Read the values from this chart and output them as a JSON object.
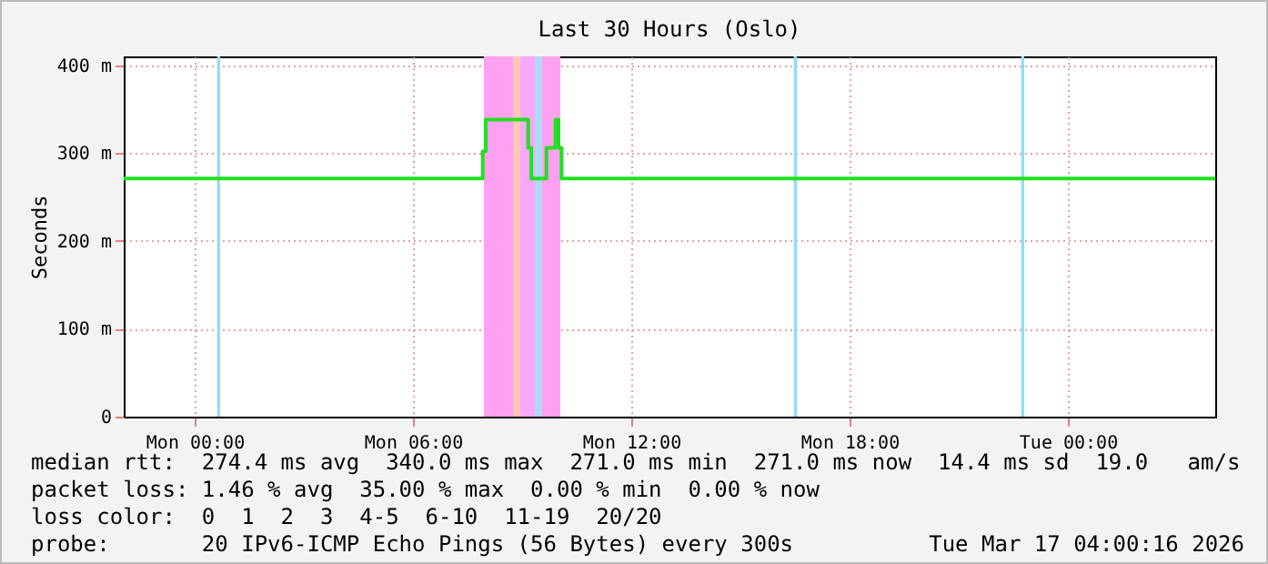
{
  "chart_data": {
    "type": "step",
    "title": "Last 30 Hours (Oslo)",
    "ylabel": "Seconds",
    "x": [
      "2026-03-15T22:03",
      "2026-03-16T07:50",
      "2026-03-16T07:55",
      "2026-03-16T08:00",
      "2026-03-16T09:05",
      "2026-03-16T09:10",
      "2026-03-16T09:15",
      "2026-03-16T09:35",
      "2026-03-16T09:40",
      "2026-03-16T09:50",
      "2026-03-16T09:55",
      "2026-03-16T10:00",
      "2026-03-16T10:05",
      "2026-03-17T04:03"
    ],
    "series": [
      {
        "color": "#20e020",
        "values": [
          271,
          271,
          302,
          338,
          338,
          306,
          271,
          271,
          306,
          306,
          338,
          306,
          271,
          271
        ]
      }
    ],
    "xlim": [
      "2026-03-15T22:03",
      "2026-03-17T04:03"
    ],
    "xticks": [
      {
        "value": "2026-03-16T00:00",
        "label": "Mon 00:00"
      },
      {
        "value": "2026-03-16T06:00",
        "label": "Mon 06:00"
      },
      {
        "value": "2026-03-16T12:00",
        "label": "Mon 12:00"
      },
      {
        "value": "2026-03-16T18:00",
        "label": "Mon 18:00"
      },
      {
        "value": "2026-03-17T00:00",
        "label": "Tue 00:00"
      }
    ],
    "ylim": [
      0,
      410
    ],
    "yticks": [
      0,
      {
        "value": 100,
        "label": "100 m"
      },
      {
        "value": 200,
        "label": "200 m"
      },
      {
        "value": 300,
        "label": "300 m"
      },
      {
        "value": 400,
        "label": "400 m"
      }
    ],
    "grid": true,
    "bands": [
      {
        "axis": "x",
        "from": "2026-03-16T00:37",
        "to": "2026-03-16T00:42",
        "color": "#90dcf8"
      },
      {
        "axis": "x",
        "from": "2026-03-16T16:28",
        "to": "2026-03-16T16:33",
        "color": "#90dcf8"
      },
      {
        "axis": "x",
        "from": "2026-03-16T22:43",
        "to": "2026-03-16T22:48",
        "color": "#90dcf8"
      },
      {
        "axis": "x",
        "from": "2026-03-16T07:57",
        "to": "2026-03-16T08:45",
        "color": "#ffa0f0"
      },
      {
        "axis": "x",
        "from": "2026-03-16T08:45",
        "to": "2026-03-16T08:57",
        "color": "#ffc8b0"
      },
      {
        "axis": "x",
        "from": "2026-03-16T08:57",
        "to": "2026-03-16T09:21",
        "color": "#f8a8f8"
      },
      {
        "axis": "x",
        "from": "2026-03-16T09:21",
        "to": "2026-03-16T09:33",
        "color": "#a8dcf8"
      },
      {
        "axis": "x",
        "from": "2026-03-16T09:33",
        "to": "2026-03-16T10:03",
        "color": "#ffa0f0"
      }
    ],
    "annotations": [
      "median rtt:  274.4 ms avg  340.0 ms max  271.0 ms min  271.0 ms now  14.4 ms sd  19.0   am/s",
      "packet loss: 1.46 % avg  35.00 % max  0.00 % min  0.00 % now",
      "loss color:  0  1  2  3  4-5  6-10  11-19  20/20",
      "probe:       20 IPv6-ICMP Echo Pings (56 Bytes) every 300s",
      "Tue Mar 17 04:00:16 2026"
    ]
  }
}
